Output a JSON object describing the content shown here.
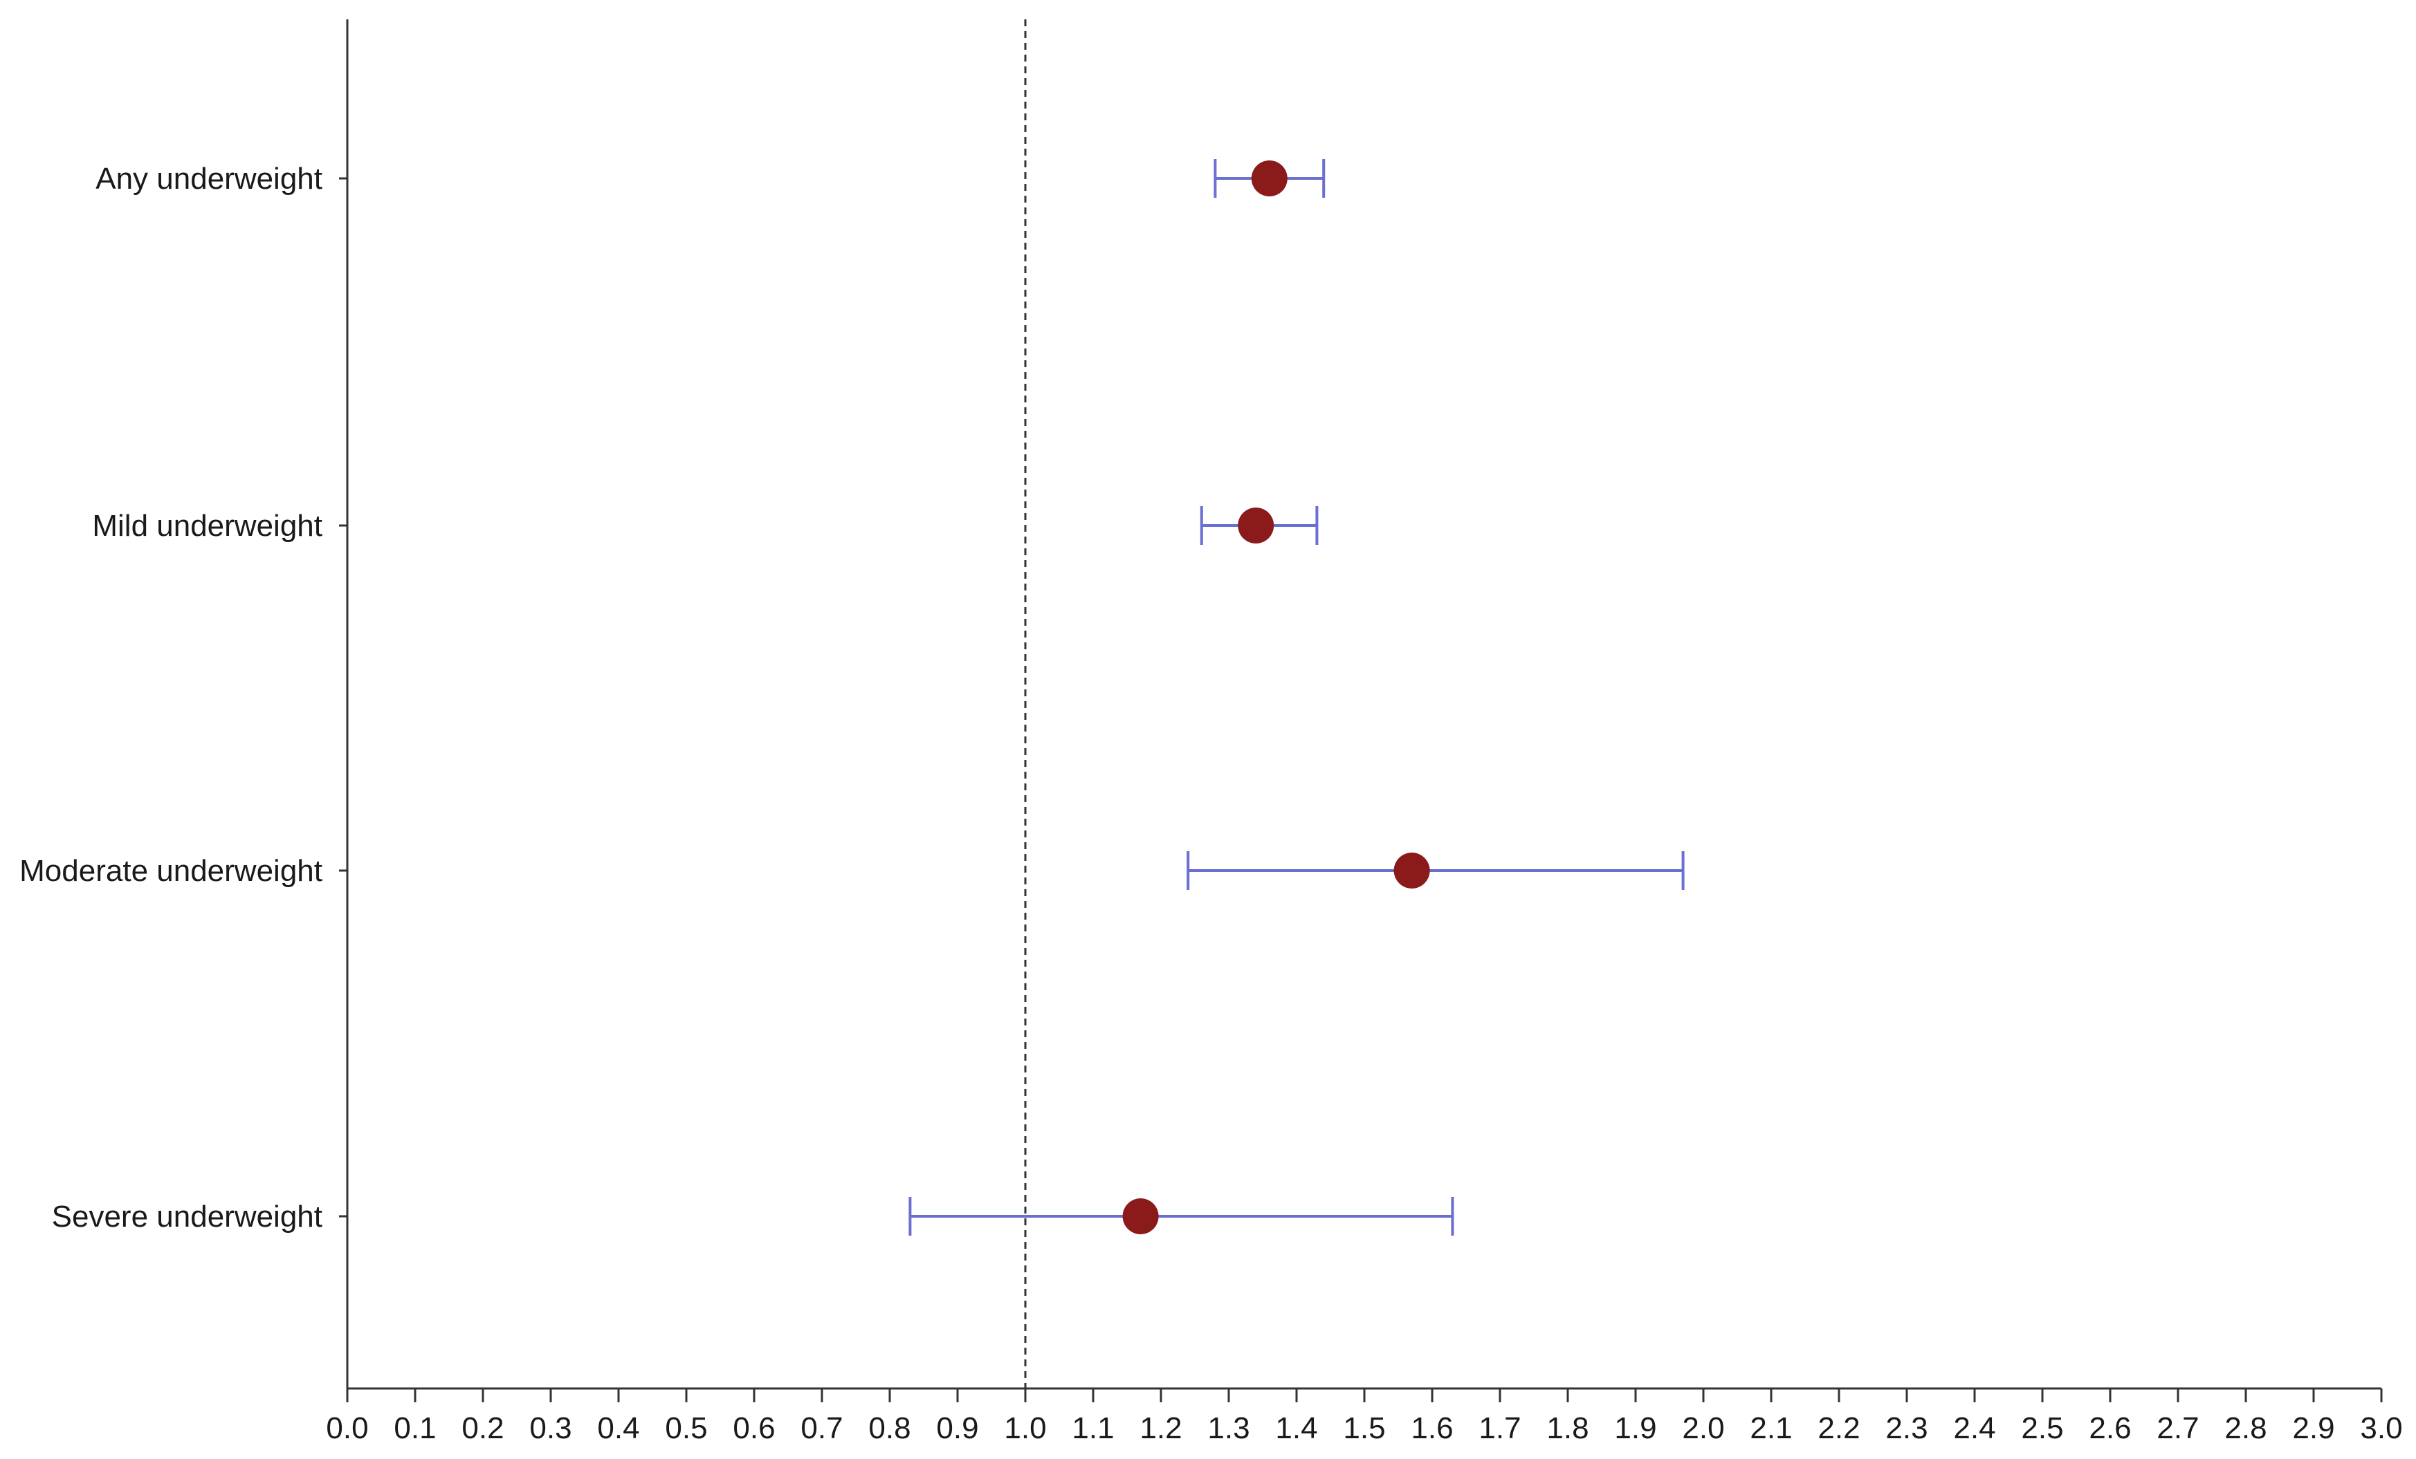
{
  "chart_data": {
    "type": "scatter",
    "subtype": "forest-plot",
    "title": "",
    "xlabel": "",
    "ylabel": "",
    "xlim": [
      0.0,
      3.0
    ],
    "x_ticks": [
      "0.0",
      "0.1",
      "0.2",
      "0.3",
      "0.4",
      "0.5",
      "0.6",
      "0.7",
      "0.8",
      "0.9",
      "1.0",
      "1.1",
      "1.2",
      "1.3",
      "1.4",
      "1.5",
      "1.6",
      "1.7",
      "1.8",
      "1.9",
      "2.0",
      "2.1",
      "2.2",
      "2.3",
      "2.4",
      "2.5",
      "2.6",
      "2.7",
      "2.8",
      "2.9",
      "3.0"
    ],
    "reference_line": 1.0,
    "grid": false,
    "legend": "none",
    "colors": {
      "point": "#8b1a1a",
      "error_bar": "#6b6fd1",
      "axis": "#333333",
      "reference": "#333333"
    },
    "categories": [
      "Any underweight",
      "Mild underweight",
      "Moderate underweight",
      "Severe underweight"
    ],
    "estimates": [
      1.36,
      1.34,
      1.57,
      1.17
    ],
    "ci_lower": [
      1.28,
      1.26,
      1.24,
      0.83
    ],
    "ci_upper": [
      1.44,
      1.43,
      1.97,
      1.63
    ]
  }
}
